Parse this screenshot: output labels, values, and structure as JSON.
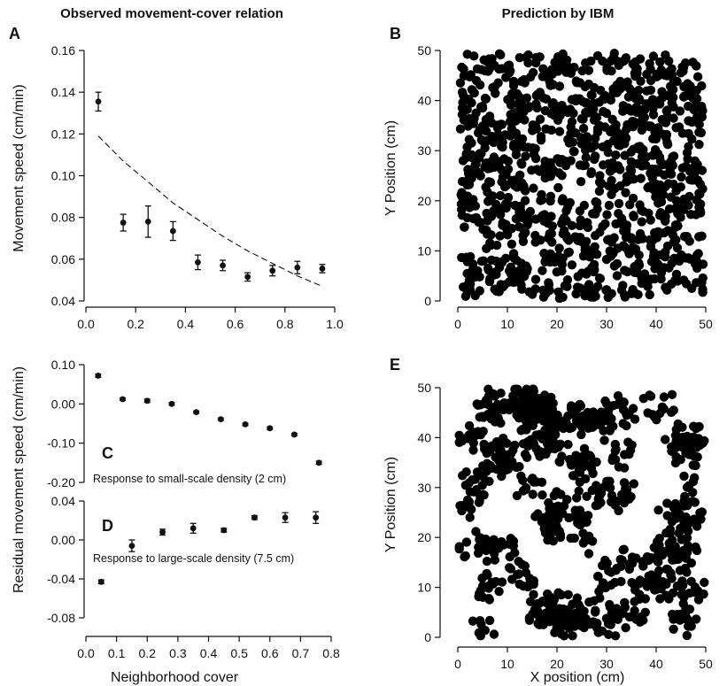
{
  "titles": {
    "left": "Observed movement-cover relation",
    "right": "Prediction by IBM"
  },
  "labels": {
    "a": "A",
    "b": "B",
    "c": "C",
    "d": "D",
    "e": "E"
  },
  "axis_labels": {
    "a_y": "Movement speed (cm/min)",
    "cd_y": "Residual movement speed (cm/min)",
    "bottom_x": "Neighborhood cover",
    "b_y": "Y Position (cm)",
    "e_y": "Y Position (cm)",
    "e_x": "X position (cm)"
  },
  "annotations": {
    "c": "Response to small-scale density (2 cm)",
    "d": "Response to large-scale density (7.5 cm)"
  },
  "chart_data": [
    {
      "id": "A",
      "type": "scatter",
      "xlabel": "",
      "ylabel": "Movement speed (cm/min)",
      "xlim": [
        0.0,
        1.0
      ],
      "ylim": [
        0.04,
        0.16
      ],
      "xticks": [
        "0.0",
        "0.2",
        "0.4",
        "0.6",
        "0.8",
        "1.0"
      ],
      "yticks": [
        "0.04",
        "0.06",
        "0.08",
        "0.10",
        "0.12",
        "0.14",
        "0.16"
      ],
      "points": [
        {
          "x": 0.05,
          "y": 0.1355,
          "err": 0.0045
        },
        {
          "x": 0.15,
          "y": 0.0775,
          "err": 0.004
        },
        {
          "x": 0.25,
          "y": 0.078,
          "err": 0.0075
        },
        {
          "x": 0.35,
          "y": 0.0735,
          "err": 0.0045
        },
        {
          "x": 0.45,
          "y": 0.0585,
          "err": 0.0035
        },
        {
          "x": 0.55,
          "y": 0.057,
          "err": 0.0025
        },
        {
          "x": 0.65,
          "y": 0.0515,
          "err": 0.002
        },
        {
          "x": 0.75,
          "y": 0.0545,
          "err": 0.0025
        },
        {
          "x": 0.85,
          "y": 0.056,
          "err": 0.003
        },
        {
          "x": 0.95,
          "y": 0.0555,
          "err": 0.002
        }
      ],
      "fit_curve": [
        {
          "x": 0.05,
          "y": 0.119
        },
        {
          "x": 0.15,
          "y": 0.107
        },
        {
          "x": 0.25,
          "y": 0.097
        },
        {
          "x": 0.35,
          "y": 0.087
        },
        {
          "x": 0.45,
          "y": 0.079
        },
        {
          "x": 0.55,
          "y": 0.071
        },
        {
          "x": 0.65,
          "y": 0.064
        },
        {
          "x": 0.75,
          "y": 0.058
        },
        {
          "x": 0.85,
          "y": 0.052
        },
        {
          "x": 0.95,
          "y": 0.047
        }
      ]
    },
    {
      "id": "C",
      "type": "scatter",
      "xlabel": "",
      "ylabel": "Residual movement speed (cm/min)",
      "xlim": [
        0.0,
        0.8
      ],
      "ylim": [
        -0.2,
        0.1
      ],
      "yticks": [
        "0.10",
        "0.00",
        "-0.10",
        "-0.20"
      ],
      "points": [
        {
          "x": 0.04,
          "y": 0.072,
          "err": 0.004
        },
        {
          "x": 0.12,
          "y": 0.012,
          "err": 0.003
        },
        {
          "x": 0.2,
          "y": 0.008,
          "err": 0.004
        },
        {
          "x": 0.28,
          "y": 0.0,
          "err": 0.003
        },
        {
          "x": 0.36,
          "y": -0.021,
          "err": 0.003
        },
        {
          "x": 0.44,
          "y": -0.039,
          "err": 0.003
        },
        {
          "x": 0.52,
          "y": -0.052,
          "err": 0.003
        },
        {
          "x": 0.6,
          "y": -0.062,
          "err": 0.003
        },
        {
          "x": 0.68,
          "y": -0.078,
          "err": 0.003
        },
        {
          "x": 0.76,
          "y": -0.15,
          "err": 0.004
        }
      ]
    },
    {
      "id": "D",
      "type": "scatter",
      "xlabel": "Neighborhood cover",
      "ylabel": "Residual movement speed (cm/min)",
      "xlim": [
        0.0,
        0.8
      ],
      "ylim": [
        -0.08,
        0.04
      ],
      "xticks": [
        "0.0",
        "0.1",
        "0.2",
        "0.3",
        "0.4",
        "0.5",
        "0.6",
        "0.7",
        "0.8"
      ],
      "yticks": [
        "0.04",
        "0.00",
        "-0.04",
        "-0.08"
      ],
      "points": [
        {
          "x": 0.05,
          "y": -0.043,
          "err": 0.002
        },
        {
          "x": 0.15,
          "y": -0.006,
          "err": 0.006
        },
        {
          "x": 0.25,
          "y": 0.008,
          "err": 0.003
        },
        {
          "x": 0.35,
          "y": 0.012,
          "err": 0.005
        },
        {
          "x": 0.45,
          "y": 0.01,
          "err": 0.002
        },
        {
          "x": 0.55,
          "y": 0.023,
          "err": 0.002
        },
        {
          "x": 0.65,
          "y": 0.023,
          "err": 0.005
        },
        {
          "x": 0.75,
          "y": 0.023,
          "err": 0.006
        }
      ]
    },
    {
      "id": "B",
      "type": "scatter",
      "xlabel": "",
      "ylabel": "Y Position (cm)",
      "xlim": [
        0,
        50
      ],
      "ylim": [
        0,
        50
      ],
      "xticks": [
        "0",
        "10",
        "20",
        "30",
        "40",
        "50"
      ],
      "yticks": [
        "0",
        "10",
        "20",
        "30",
        "40",
        "50"
      ],
      "pattern": "uniform",
      "n_points": 1100,
      "seed": 17
    },
    {
      "id": "E",
      "type": "scatter",
      "xlabel": "X position (cm)",
      "ylabel": "Y Position (cm)",
      "xlim": [
        0,
        50
      ],
      "ylim": [
        0,
        50
      ],
      "xticks": [
        "0",
        "10",
        "20",
        "30",
        "40",
        "50"
      ],
      "yticks": [
        "0",
        "10",
        "20",
        "30",
        "40",
        "50"
      ],
      "pattern": "clustered",
      "n_points": 950,
      "seed": 29
    }
  ]
}
